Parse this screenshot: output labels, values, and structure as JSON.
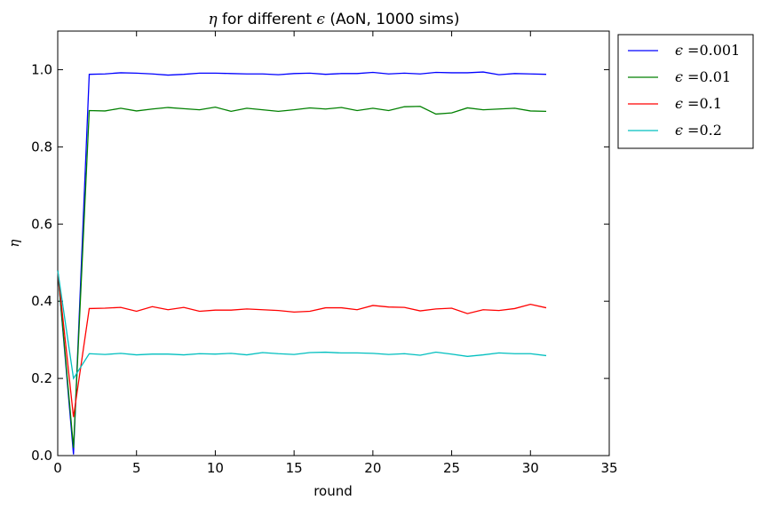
{
  "chart_data": {
    "type": "line",
    "title": "η for different ϵ (AoN, 1000 sims)",
    "title_parts": {
      "eta": "η",
      "mid": " for different ",
      "eps": "ϵ",
      "rest": " (AoN, 1000 sims)"
    },
    "xlabel": "round",
    "ylabel": "η",
    "xlim": [
      0,
      35
    ],
    "ylim": [
      0.0,
      1.1
    ],
    "x_ticks": [
      0,
      5,
      10,
      15,
      20,
      25,
      30,
      35
    ],
    "y_ticks": [
      0.0,
      0.2,
      0.4,
      0.6,
      0.8,
      1.0
    ],
    "grid": false,
    "legend_position": "outside-top-right",
    "x": [
      0,
      1,
      2,
      3,
      4,
      5,
      6,
      7,
      8,
      9,
      10,
      11,
      12,
      13,
      14,
      15,
      16,
      17,
      18,
      19,
      20,
      21,
      22,
      23,
      24,
      25,
      26,
      27,
      28,
      29,
      30,
      31
    ],
    "series": [
      {
        "name": "ϵ =0.001",
        "name_parts": {
          "sym": "ϵ",
          "rest": " =0.001"
        },
        "color": "#0000ff",
        "values": [
          0.48,
          0.003,
          0.988,
          0.989,
          0.992,
          0.991,
          0.989,
          0.986,
          0.988,
          0.991,
          0.991,
          0.99,
          0.989,
          0.989,
          0.987,
          0.99,
          0.991,
          0.988,
          0.99,
          0.99,
          0.993,
          0.989,
          0.991,
          0.989,
          0.993,
          0.992,
          0.992,
          0.994,
          0.987,
          0.99,
          0.989,
          0.988
        ]
      },
      {
        "name": "ϵ =0.01",
        "name_parts": {
          "sym": "ϵ",
          "rest": " =0.01"
        },
        "color": "#008000",
        "values": [
          0.48,
          0.02,
          0.894,
          0.893,
          0.9,
          0.893,
          0.898,
          0.902,
          0.899,
          0.896,
          0.903,
          0.892,
          0.9,
          0.896,
          0.892,
          0.896,
          0.901,
          0.898,
          0.902,
          0.894,
          0.9,
          0.894,
          0.904,
          0.905,
          0.885,
          0.888,
          0.901,
          0.896,
          0.898,
          0.9,
          0.893,
          0.892
        ]
      },
      {
        "name": "ϵ =0.1",
        "name_parts": {
          "sym": "ϵ",
          "rest": " =0.1"
        },
        "color": "#ff0000",
        "values": [
          0.48,
          0.1,
          0.381,
          0.382,
          0.384,
          0.374,
          0.386,
          0.378,
          0.384,
          0.374,
          0.377,
          0.377,
          0.38,
          0.378,
          0.376,
          0.372,
          0.374,
          0.383,
          0.383,
          0.378,
          0.389,
          0.385,
          0.384,
          0.375,
          0.38,
          0.382,
          0.368,
          0.378,
          0.376,
          0.381,
          0.392,
          0.383
        ]
      },
      {
        "name": "ϵ =0.2",
        "name_parts": {
          "sym": "ϵ",
          "rest": " =0.2"
        },
        "color": "#00bfbf",
        "values": [
          0.48,
          0.2,
          0.264,
          0.262,
          0.265,
          0.261,
          0.263,
          0.263,
          0.261,
          0.264,
          0.263,
          0.265,
          0.261,
          0.267,
          0.264,
          0.262,
          0.267,
          0.268,
          0.266,
          0.266,
          0.265,
          0.262,
          0.264,
          0.26,
          0.268,
          0.263,
          0.257,
          0.261,
          0.266,
          0.264,
          0.264,
          0.259
        ]
      }
    ]
  }
}
